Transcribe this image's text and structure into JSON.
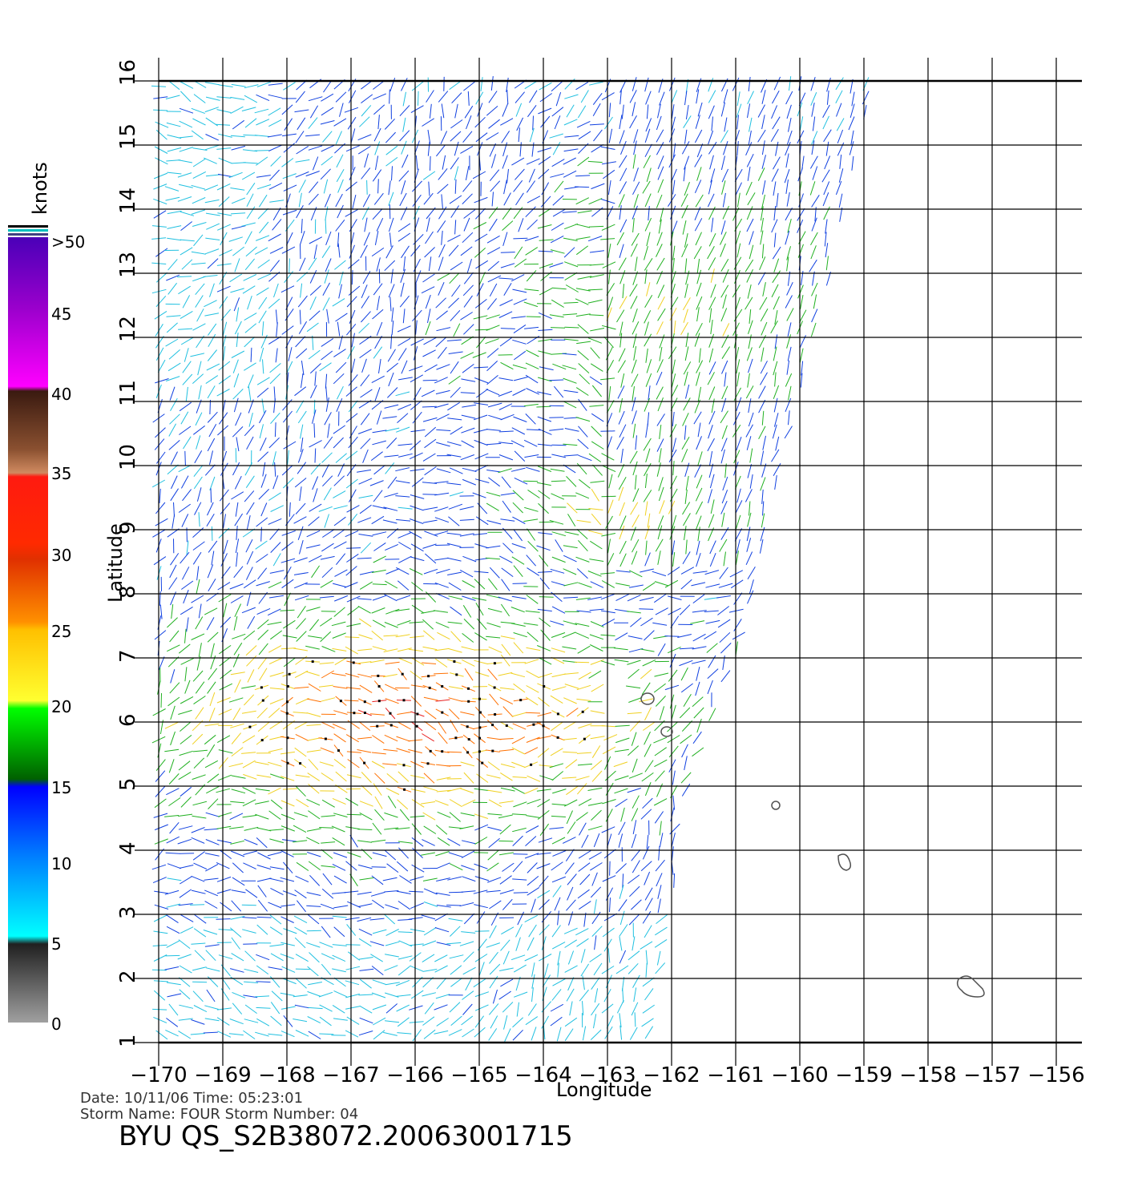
{
  "map": {
    "lon_range": [
      -170,
      -156
    ],
    "lat_range": [
      1,
      16
    ],
    "lon_ticks": [
      "−170",
      "−169",
      "−168",
      "−167",
      "−166",
      "−165",
      "−164",
      "−163",
      "−162",
      "−161",
      "−160",
      "−159",
      "−158",
      "−157",
      "−156"
    ],
    "lat_ticks": [
      "1",
      "2",
      "3",
      "4",
      "5",
      "6",
      "7",
      "8",
      "9",
      "10",
      "11",
      "12",
      "13",
      "14",
      "15",
      "16"
    ],
    "xlabel": "Longitude",
    "ylabel": "Latitude",
    "grid": true
  },
  "legend": {
    "title": "knots",
    "labels": [
      ">50",
      "45",
      "40",
      "35",
      "30",
      "25",
      "20",
      "15",
      "10",
      "5",
      "0"
    ],
    "colors": [
      "#5a00c8",
      "#c000d0",
      "#ff00ff",
      "#5a2a1a",
      "#c07848",
      "#ff2000",
      "#ff7000",
      "#ffcc00",
      "#ffff20",
      "#00ff00",
      "#006400",
      "#0000ff",
      "#00a0ff",
      "#00ffff",
      "#303030",
      "#909090"
    ]
  },
  "info": {
    "date_line": "Date: 10/11/06   Time: 05:23:01",
    "storm_line": "Storm  Name: FOUR    Storm  Number: 04",
    "product": "BYU  QS_S2B38072.20063001715"
  }
}
